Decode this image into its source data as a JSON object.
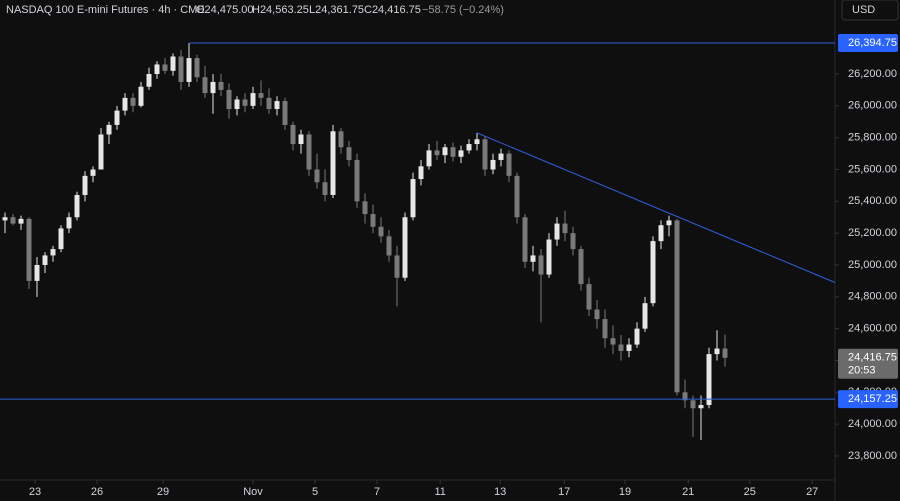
{
  "chart_data": {
    "type": "candlestick",
    "title": "NASDAQ 100 E-mini Futures · 4h · CME",
    "ohlc_header": {
      "o": "O24,475.00",
      "h": "H24,563.25",
      "l": "L24,361.75",
      "c": "C24,416.75",
      "change": "−58.75 (−0.24%)"
    },
    "currency": "USD",
    "up_color": "#e6e6e6",
    "down_color": "#7a7a7a",
    "line_color": "#2f5fe0",
    "open": [
      25280,
      25300,
      25260,
      25290,
      24900,
      25000,
      25060,
      25100,
      25230,
      25300,
      25440,
      25560,
      25600,
      25820,
      25880,
      25970,
      26050,
      26000,
      26120,
      26200,
      26260,
      26220,
      26310,
      26150,
      26300,
      26180,
      26080,
      26150,
      26100,
      25980,
      26040,
      26000,
      26080,
      26050,
      25980,
      26030,
      25880,
      25760,
      25820,
      25600,
      25520,
      25440,
      25840,
      25740,
      25660,
      25400,
      25320,
      25240,
      25180,
      25060,
      24920,
      25300,
      25540,
      25620,
      25720,
      25690,
      25740,
      25680,
      25720,
      25760,
      25790,
      25600,
      25660,
      25700,
      25560,
      25300,
      25020,
      25060,
      24940,
      25160,
      25260,
      25200,
      25100,
      24880,
      24720,
      24660,
      24540,
      24500,
      24460,
      24500,
      24600,
      24760,
      25150,
      25250,
      25280,
      24200,
      24150,
      24100,
      24120,
      24440,
      24475
    ],
    "high": [
      25330,
      25320,
      25310,
      25300,
      25050,
      25080,
      25120,
      25250,
      25330,
      25460,
      25590,
      25620,
      25860,
      25900,
      26000,
      26080,
      26080,
      26150,
      26240,
      26280,
      26300,
      26330,
      26350,
      26394.75,
      26320,
      26250,
      26200,
      26200,
      26140,
      26060,
      26080,
      26120,
      26160,
      26110,
      26060,
      26050,
      25900,
      25850,
      25840,
      25700,
      25600,
      25880,
      25860,
      25780,
      25700,
      25450,
      25380,
      25300,
      25220,
      25120,
      25330,
      25580,
      25660,
      25760,
      25780,
      25760,
      25770,
      25750,
      25790,
      25830,
      25810,
      25700,
      25730,
      25720,
      25580,
      25320,
      25120,
      25100,
      25200,
      25300,
      25340,
      25240,
      25120,
      24920,
      24780,
      24720,
      24620,
      24560,
      24540,
      24640,
      24800,
      25180,
      25280,
      25310,
      25290,
      24280,
      24180,
      24180,
      24480,
      24590,
      24563.25
    ],
    "low": [
      25200,
      25250,
      25220,
      24850,
      24800,
      24950,
      25020,
      25080,
      25200,
      25280,
      25400,
      25520,
      25600,
      25760,
      25850,
      25940,
      25960,
      25990,
      26100,
      26170,
      26200,
      26190,
      26100,
      26120,
      26150,
      26050,
      25950,
      26060,
      25920,
      25940,
      25960,
      25980,
      26000,
      25950,
      25940,
      25850,
      25720,
      25700,
      25560,
      25480,
      25400,
      25420,
      25700,
      25620,
      25360,
      25260,
      25200,
      25140,
      25020,
      24740,
      24900,
      25280,
      25500,
      25600,
      25660,
      25640,
      25650,
      25640,
      25700,
      25720,
      25560,
      25570,
      25620,
      25520,
      25260,
      24980,
      24960,
      24640,
      24920,
      25120,
      25150,
      25060,
      24840,
      24680,
      24600,
      24480,
      24440,
      24400,
      24420,
      24480,
      24580,
      24740,
      25100,
      25180,
      24180,
      24100,
      23920,
      23900,
      24100,
      24400,
      24361.75
    ],
    "close": [
      25300,
      25260,
      25290,
      24900,
      25000,
      25060,
      25100,
      25230,
      25300,
      25440,
      25560,
      25600,
      25820,
      25880,
      25970,
      26050,
      26000,
      26120,
      26200,
      26260,
      26220,
      26310,
      26150,
      26300,
      26180,
      26080,
      26150,
      26100,
      25980,
      26040,
      26000,
      26080,
      26050,
      25980,
      26030,
      25880,
      25760,
      25820,
      25600,
      25520,
      25440,
      25840,
      25740,
      25660,
      25400,
      25320,
      25240,
      25180,
      25060,
      24920,
      25300,
      25540,
      25620,
      25720,
      25690,
      25740,
      25680,
      25720,
      25760,
      25790,
      25600,
      25660,
      25700,
      25560,
      25300,
      25020,
      25060,
      24940,
      25160,
      25260,
      25200,
      25100,
      24880,
      24720,
      24660,
      24540,
      24500,
      24460,
      24500,
      24600,
      24760,
      25150,
      25250,
      25280,
      24200,
      24150,
      24100,
      24120,
      24440,
      24475,
      24416.75
    ],
    "xlim": [
      -0.625,
      103.75
    ],
    "xticks": [
      {
        "value": 3.75,
        "label": "23"
      },
      {
        "value": 11.5,
        "label": "26"
      },
      {
        "value": 19.75,
        "label": "29"
      },
      {
        "value": 31,
        "label": "Nov"
      },
      {
        "value": 38.75,
        "label": "5"
      },
      {
        "value": 46.5,
        "label": "7"
      },
      {
        "value": 54.4,
        "label": "11"
      },
      {
        "value": 61.9,
        "label": "13"
      },
      {
        "value": 69.9,
        "label": "17"
      },
      {
        "value": 77.5,
        "label": "19"
      },
      {
        "value": 85.4,
        "label": "21"
      },
      {
        "value": 93.1,
        "label": "25"
      },
      {
        "value": 100.9,
        "label": "27"
      }
    ],
    "ylim": [
      23649,
      26665
    ],
    "yticks": [
      {
        "value": 23800,
        "label": "23,800.00"
      },
      {
        "value": 24000,
        "label": "24,000.00"
      },
      {
        "value": 24200,
        "label": "24,200.00"
      },
      {
        "value": 24400,
        "label": "24,400.00"
      },
      {
        "value": 24600,
        "label": "24,600.00"
      },
      {
        "value": 24800,
        "label": "24,800.00"
      },
      {
        "value": 25000,
        "label": "25,000.00"
      },
      {
        "value": 25200,
        "label": "25,200.00"
      },
      {
        "value": 25400,
        "label": "25,400.00"
      },
      {
        "value": 25600,
        "label": "25,600.00"
      },
      {
        "value": 25800,
        "label": "25,800.00"
      },
      {
        "value": 26000,
        "label": "26,000.00"
      },
      {
        "value": 26200,
        "label": "26,200.00"
      }
    ],
    "hlines": [
      {
        "value": 26394.75,
        "label": "26,394.75",
        "start": 23
      },
      {
        "value": 24157.25,
        "label": "24,157.25",
        "start": -0.625
      }
    ],
    "trendline": {
      "x": [
        59,
        103.75
      ],
      "y": [
        25830,
        24890
      ]
    },
    "last_price": {
      "value": 24416.75,
      "label": "24,416.75",
      "countdown": "20:53"
    }
  }
}
